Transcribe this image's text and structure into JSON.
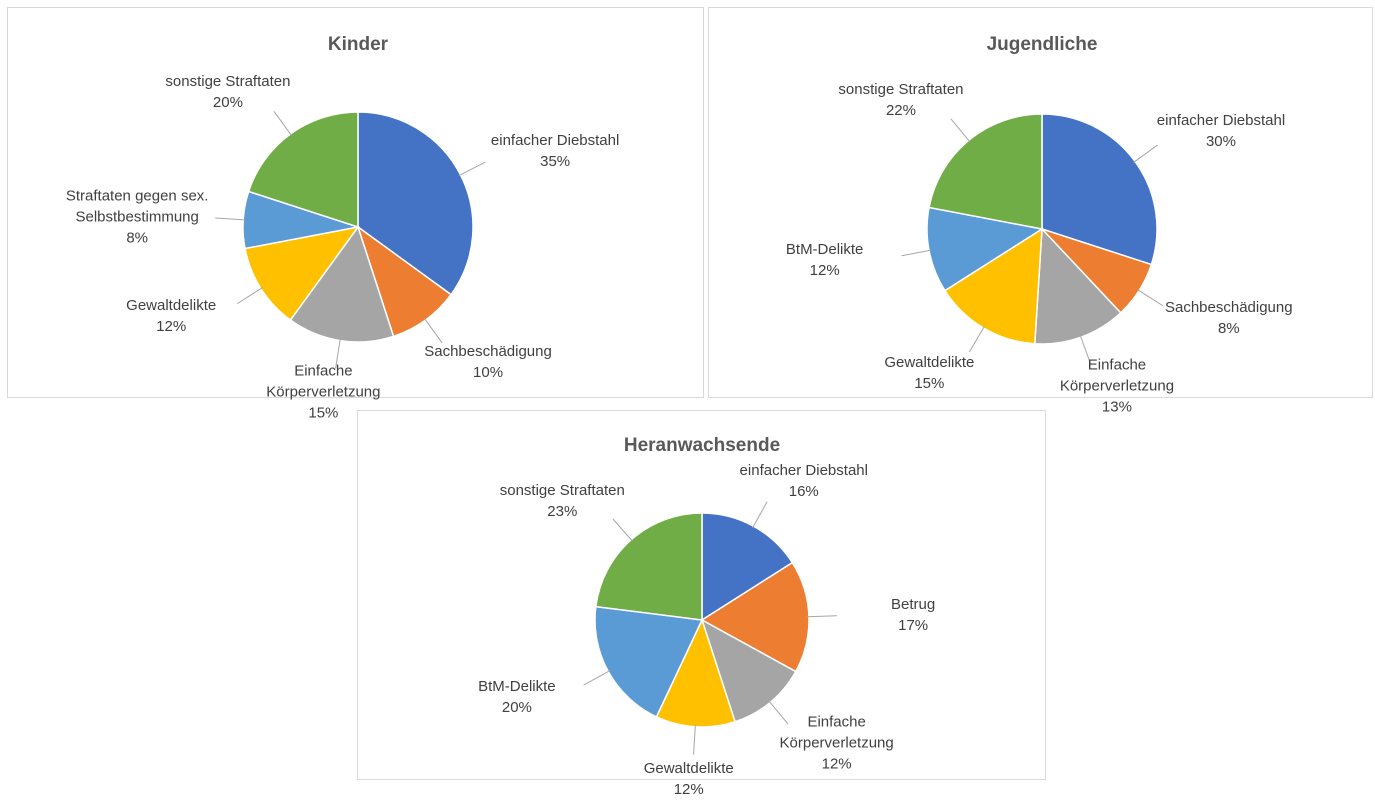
{
  "chart_data": [
    {
      "type": "pie",
      "title": "Kinder",
      "categories": [
        "einfacher Diebstahl",
        "Sachbeschädigung",
        "Einfache Körperverletzung",
        "Gewaltdelikte",
        "Straftaten gegen sex. Selbstbestimmung",
        "sonstige Straftaten"
      ],
      "values": [
        35,
        10,
        15,
        12,
        8,
        20
      ],
      "value_labels": [
        "35%",
        "10%",
        "15%",
        "12%",
        "8%",
        "20%"
      ],
      "colors": [
        "#4472c4",
        "#ed7d31",
        "#a5a5a5",
        "#ffc000",
        "#5b9bd5",
        "#70ad47"
      ]
    },
    {
      "type": "pie",
      "title": "Jugendliche",
      "categories": [
        "einfacher Diebstahl",
        "Sachbeschädigung",
        "Einfache Körperverletzung",
        "Gewaltdelikte",
        "BtM-Delikte",
        "sonstige Straftaten"
      ],
      "values": [
        30,
        8,
        13,
        15,
        12,
        22
      ],
      "value_labels": [
        "30%",
        "8%",
        "13%",
        "15%",
        "12%",
        "22%"
      ],
      "colors": [
        "#4472c4",
        "#ed7d31",
        "#a5a5a5",
        "#ffc000",
        "#5b9bd5",
        "#70ad47"
      ]
    },
    {
      "type": "pie",
      "title": "Heranwachsende",
      "categories": [
        "einfacher Diebstahl",
        "Betrug",
        "Einfache Körperverletzung",
        "Gewaltdelikte",
        "BtM-Delikte",
        "sonstige Straftaten"
      ],
      "values": [
        16,
        17,
        12,
        12,
        20,
        23
      ],
      "value_labels": [
        "16%",
        "17%",
        "12%",
        "12%",
        "20%",
        "23%"
      ],
      "colors": [
        "#4472c4",
        "#ed7d31",
        "#a5a5a5",
        "#ffc000",
        "#5b9bd5",
        "#70ad47"
      ]
    }
  ]
}
